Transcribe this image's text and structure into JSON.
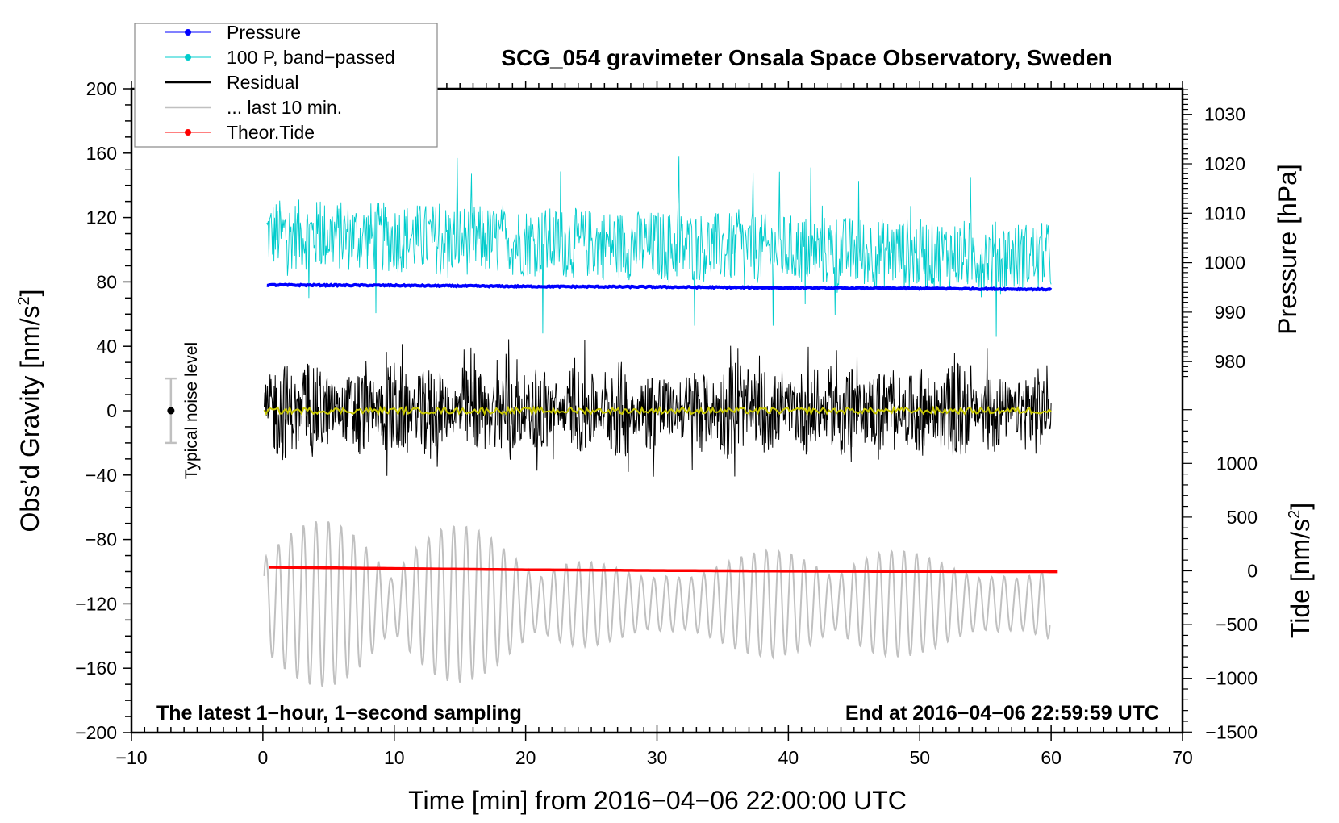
{
  "chart_data": {
    "type": "line",
    "title": "SCG_054 gravimeter Onsala Space Observatory, Sweden",
    "xlabel": "Time [min] from 2016−04−06 22:00:00 UTC",
    "ylabel_left": "Obs’d Gravity [nm/s",
    "ylabel_left_sup": "2",
    "ylabel_left_end": "]",
    "ylabel_right_pressure": "Pressure [hPa]",
    "ylabel_right_tide": "Tide [nm/s",
    "ylabel_right_tide_sup": "2",
    "ylabel_right_tide_end": "]",
    "xlim": [
      -10,
      70
    ],
    "ylim": [
      -200,
      200
    ],
    "pressure_lim": [
      978,
      1033
    ],
    "tide_lim": [
      -1500,
      1500
    ],
    "x_ticks": [
      "−10",
      "0",
      "10",
      "20",
      "30",
      "40",
      "50",
      "60",
      "70"
    ],
    "x_tick_values": [
      -10,
      0,
      10,
      20,
      30,
      40,
      50,
      60,
      70
    ],
    "y_ticks": [
      "200",
      "160",
      "120",
      "80",
      "40",
      "0",
      "−40",
      "−80",
      "−120",
      "−160",
      "−200"
    ],
    "y_tick_values": [
      200,
      160,
      120,
      80,
      40,
      0,
      -40,
      -80,
      -120,
      -160,
      -200
    ],
    "pressure_ticks": [
      "1030",
      "1020",
      "1010",
      "1000",
      "990",
      "980"
    ],
    "pressure_tick_values": [
      1030,
      1020,
      1010,
      1000,
      990,
      980
    ],
    "tide_ticks": [
      "1000",
      "500",
      "0",
      "−500",
      "−1000",
      "−1500"
    ],
    "tide_tick_values": [
      1000,
      500,
      0,
      -500,
      -1000,
      -1500
    ],
    "legend": {
      "position": "top-left",
      "entries": [
        {
          "label": "Pressure",
          "color": "#0000ff",
          "marker": true
        },
        {
          "label": "100 P, band−passed",
          "color": "#00cccc",
          "marker": true
        },
        {
          "label": "Residual",
          "color": "#000000",
          "marker": false
        },
        {
          "label": "... last 10 min.",
          "color": "#c0c0c0",
          "marker": false
        },
        {
          "label": "Theor.Tide",
          "color": "#ff0000",
          "marker": true
        }
      ]
    },
    "series": [
      {
        "name": "Pressure",
        "axis": "pressure",
        "color": "#0000ff",
        "x": [
          0,
          10,
          20,
          30,
          40,
          50,
          60
        ],
        "values": [
          995.5,
          995.4,
          995.2,
          995.1,
          994.9,
          994.8,
          994.6
        ]
      },
      {
        "name": "100 P, band-passed",
        "axis": "gravity",
        "color": "#00cccc",
        "center": 110,
        "amplitude": 22,
        "peak_max": 152,
        "peak_min": 45
      },
      {
        "name": "Residual",
        "axis": "gravity",
        "color": "#000000",
        "center": 0,
        "amplitude": 18,
        "peak_max": 52,
        "peak_min": -52
      },
      {
        "name": "Residual smoothed",
        "axis": "gravity",
        "color": "#c8c800",
        "center": 0,
        "amplitude": 2
      },
      {
        "name": "... last 10 min.",
        "axis": "gravity",
        "color": "#c0c0c0",
        "center": -120,
        "amplitude": 30,
        "peak_max": -70,
        "peak_min": -172
      },
      {
        "name": "Theor.Tide",
        "axis": "tide",
        "color": "#ff0000",
        "x": [
          0.5,
          10,
          20,
          30,
          40,
          50,
          60.5
        ],
        "values": [
          34,
          22,
          10,
          3,
          -3,
          -6,
          -8
        ]
      }
    ],
    "noise_bar": {
      "label": "Typical noise level",
      "center": 0,
      "half_range": 20,
      "x": -7
    },
    "annotations": {
      "left": "The latest 1−hour, 1−second sampling",
      "right": "End at 2016−04−06 22:59:59 UTC"
    },
    "grid": false
  }
}
